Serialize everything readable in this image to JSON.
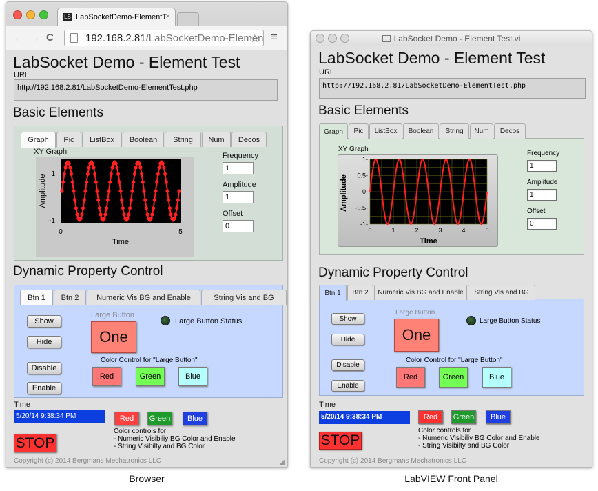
{
  "browser": {
    "tab_title": "LabSocketDemo-ElementT",
    "tab_icon_text": "LS",
    "url_host": "192.168.2.81",
    "url_path": "/LabSocketDemo-Element…"
  },
  "labview": {
    "window_title": "LabSocket Demo - Element Test.vi"
  },
  "page": {
    "title": "LabSocket Demo - Element Test",
    "url_label": "URL",
    "url_value": "http://192.168.2.81/LabSocketDemo-ElementTest.php",
    "basic_heading": "Basic Elements",
    "basic_tabs": [
      "Graph",
      "Pic",
      "ListBox",
      "Boolean",
      "String",
      "Num",
      "Decos"
    ],
    "graph_title": "XY Graph",
    "graph_ylabel": "Amplitude",
    "graph_xlabel": "Time",
    "freq_label": "Frequency",
    "freq_value": "1",
    "amp_label": "Amplitude",
    "amp_value": "1",
    "offset_label": "Offset",
    "offset_value": "0",
    "dyn_heading": "Dynamic Property Control",
    "dyn_tabs": [
      "Btn 1",
      "Btn 2",
      "Numeric Vis BG and Enable",
      "String Vis and BG"
    ],
    "show_label": "Show",
    "hide_label": "Hide",
    "disable_label": "Disable",
    "enable_label": "Enable",
    "large_button_caption": "Large Button",
    "large_button_label": "One",
    "large_status_label": "Large Button Status",
    "color_control_label": "Color Control for \"Large Button\"",
    "red_label": "Red",
    "green_label": "Green",
    "blue_label": "Blue",
    "time_label": "Time",
    "time_value": "5/20/14 9:38:34 PM",
    "color_controls_note_1": "Color controls for",
    "color_controls_note_2": "- Numeric Visibiliy BG Color and Enable",
    "color_controls_note_3": "- String Visibilty and BG Color",
    "stop_label": "STOP",
    "copyright": "Copyright (c) 2014 Bergmans Mechatronics LLC"
  },
  "captions": {
    "browser": "Browser",
    "labview": "LabVIEW Front Panel"
  },
  "colors": {
    "red_btn": "#ff7777",
    "green_btn": "#73ff54",
    "blue_btn": "#b5ffff",
    "lv_red_btn": "#ff3030",
    "lv_green_btn": "#1f9a2c",
    "lv_blue_btn": "#1f3fe0",
    "large_button": "#ff8277",
    "graph_bg": "#000000",
    "graph_trace": "#ff2020",
    "dyn_bg": "#c6d8ff",
    "basic_bg": "#d3dfd6",
    "time_bg": "#0c3ee0",
    "stop_bg": "#ff3131"
  },
  "chart_data": [
    {
      "type": "line",
      "title": "XY Graph",
      "xlabel": "Time",
      "ylabel": "Amplitude",
      "xlim": [
        0,
        5
      ],
      "ylim": [
        -1,
        1
      ],
      "x_ticks": [
        "0",
        "5"
      ],
      "y_ticks": [
        "1",
        "-1"
      ],
      "series": [
        {
          "frequency": 1,
          "amplitude": 1,
          "offset": 0,
          "cycles": 5
        }
      ]
    },
    {
      "type": "line",
      "title": "XY Graph",
      "xlabel": "Time",
      "ylabel": "Amplitude",
      "xlim": [
        0,
        5
      ],
      "ylim": [
        -1,
        1
      ],
      "x_ticks": [
        "0",
        "1",
        "2",
        "3",
        "4",
        "5"
      ],
      "y_ticks": [
        "1",
        "0.5",
        "0",
        "-0.5",
        "-1"
      ],
      "series": [
        {
          "frequency": 1,
          "amplitude": 1,
          "offset": 0,
          "cycles": 5
        }
      ]
    }
  ]
}
